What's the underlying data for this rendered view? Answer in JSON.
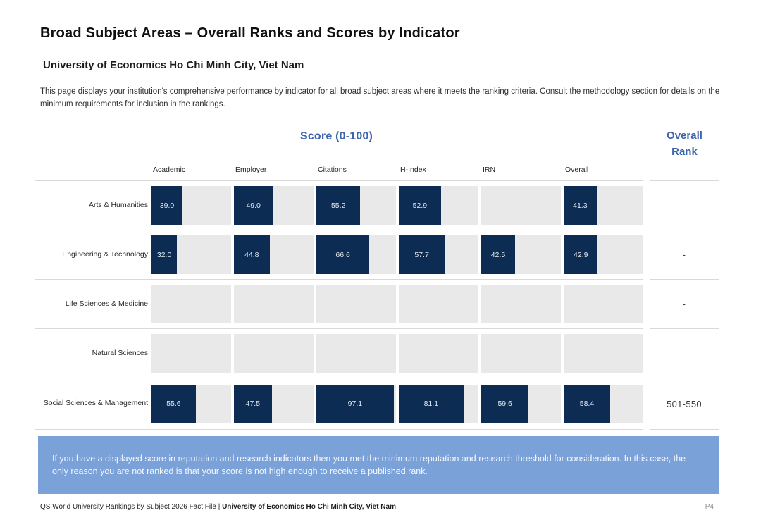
{
  "page": {
    "title": "Broad Subject Areas – Overall Ranks and Scores by Indicator",
    "institution": "University of Economics Ho Chi Minh City, Viet Nam",
    "description": "This page displays your institution's comprehensive performance by indicator for all broad subject areas where it meets the ranking criteria. Consult the methodology section for details on the minimum requirements for inclusion in the rankings."
  },
  "table": {
    "score_header": "Score (0-100)",
    "rank_header_line1": "Overall",
    "rank_header_line2": "Rank"
  },
  "chart_data": {
    "type": "bar",
    "orientation": "horizontal",
    "title": "Score (0-100)",
    "xlim": [
      0,
      100
    ],
    "categories": [
      "Academic",
      "Employer",
      "Citations",
      "H-Index",
      "IRN",
      "Overall"
    ],
    "rows": [
      {
        "subject": "Arts & Humanities",
        "values": [
          39.0,
          49.0,
          55.2,
          52.9,
          null,
          41.3
        ],
        "overall_rank": "-"
      },
      {
        "subject": "Engineering & Technology",
        "values": [
          32.0,
          44.8,
          66.6,
          57.7,
          42.5,
          42.9
        ],
        "overall_rank": "-"
      },
      {
        "subject": "Life Sciences & Medicine",
        "values": [
          null,
          null,
          null,
          null,
          null,
          null
        ],
        "overall_rank": "-"
      },
      {
        "subject": "Natural Sciences",
        "values": [
          null,
          null,
          null,
          null,
          null,
          null
        ],
        "overall_rank": "-"
      },
      {
        "subject": "Social Sciences & Management",
        "values": [
          55.6,
          47.5,
          97.1,
          81.1,
          59.6,
          58.4
        ],
        "overall_rank": "501-550"
      }
    ]
  },
  "note": {
    "text": "If you have a displayed score in reputation and research indicators then you met the minimum reputation and research threshold for consideration. In this case, the only reason you are not ranked is that your score is not high enough to receive a published rank."
  },
  "footer": {
    "left_regular": "QS World University Rankings by Subject 2026 Fact File | ",
    "left_bold": "University of Economics Ho Chi Minh City, Viet Nam",
    "page_number": "P4"
  },
  "colors": {
    "bar_navy": "#0d2c54",
    "track_gray": "#e9e9e9",
    "accent_blue": "#3c64ad",
    "note_box_blue": "#7ba1d9",
    "separator_gray": "#d9d9d9"
  }
}
